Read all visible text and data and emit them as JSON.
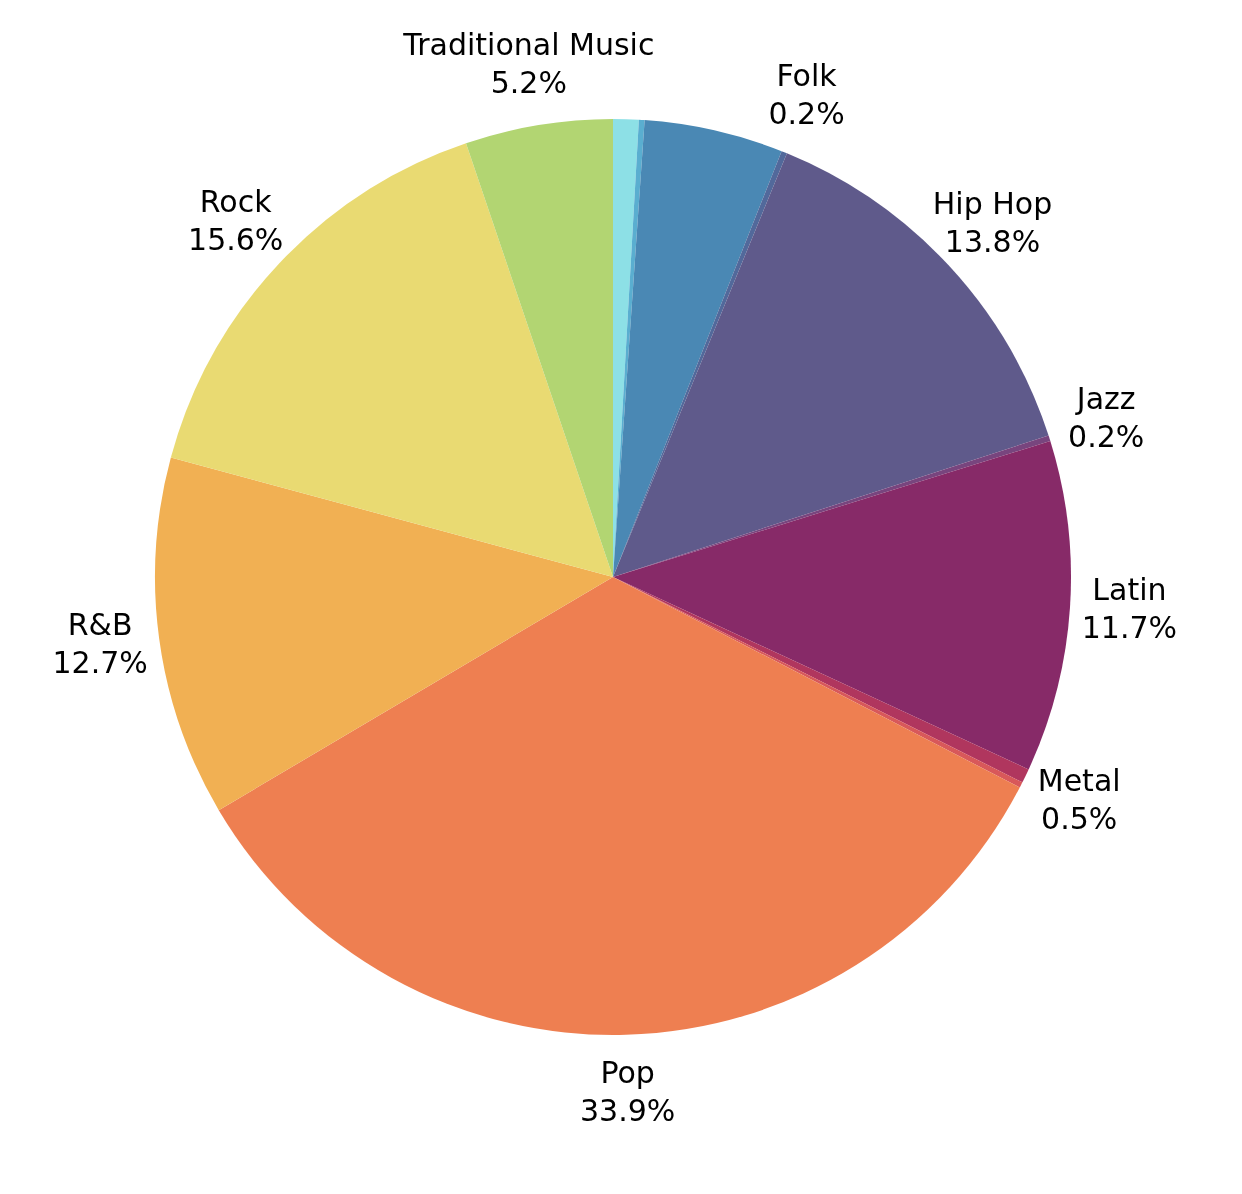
{
  "chart_data": {
    "type": "pie",
    "categories": [
      null,
      null,
      null,
      "Folk",
      "Hip Hop",
      "Jazz",
      "Latin",
      "Metal",
      null,
      "Pop",
      "R&B",
      "Rock",
      "Traditional Music"
    ],
    "values": [
      0.9,
      0.2,
      4.9,
      0.2,
      13.8,
      0.2,
      11.7,
      0.5,
      0.2,
      33.9,
      12.7,
      15.6,
      5.2
    ],
    "value_labels": [
      null,
      null,
      null,
      "0.2%",
      "13.8%",
      "0.2%",
      "11.7%",
      "0.5%",
      null,
      "33.9%",
      "12.7%",
      "15.6%",
      "5.2%"
    ],
    "colors": [
      "#8de0e6",
      "#5aaed0",
      "#4a88b4",
      "#52699b",
      "#5f5a8b",
      "#78457e",
      "#872a68",
      "#b0365e",
      "#d8585a",
      "#ee7f51",
      "#f1b053",
      "#e9da72",
      "#b2d572"
    ]
  }
}
